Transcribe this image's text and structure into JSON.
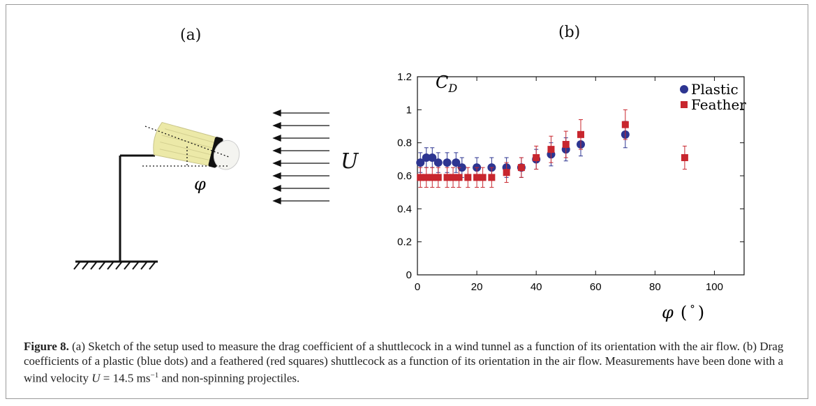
{
  "panels": {
    "a_label": "(a)",
    "b_label": "(b)"
  },
  "sketch": {
    "velocity_label": "U",
    "angle_label": "φ",
    "colors": {
      "feathers": "#ece9a8",
      "band": "#111111",
      "cork": "#f4f4f0"
    }
  },
  "chart_data": {
    "type": "scatter",
    "ylabel_main": "C",
    "ylabel_sub": "D",
    "xlabel_symbol": "φ",
    "xlabel_unit_open": "(",
    "xlabel_unit_deg": "°",
    "xlabel_unit_close": ")",
    "xlim": [
      0,
      110
    ],
    "ylim": [
      0,
      1.2
    ],
    "x_ticks": [
      "0",
      "20",
      "40",
      "60",
      "80",
      "100"
    ],
    "y_ticks": [
      "0",
      "0.2",
      "0.4",
      "0.6",
      "0.8",
      "1",
      "1.2"
    ],
    "legend_position": "top-right",
    "series": [
      {
        "name": "Plastic",
        "marker": "circle",
        "color": "#2d3591",
        "points": [
          {
            "x": 1,
            "y": 0.68,
            "err": 0.06
          },
          {
            "x": 3,
            "y": 0.71,
            "err": 0.06
          },
          {
            "x": 5,
            "y": 0.71,
            "err": 0.06
          },
          {
            "x": 7,
            "y": 0.68,
            "err": 0.06
          },
          {
            "x": 10,
            "y": 0.68,
            "err": 0.06
          },
          {
            "x": 13,
            "y": 0.68,
            "err": 0.06
          },
          {
            "x": 15,
            "y": 0.65,
            "err": 0.06
          },
          {
            "x": 20,
            "y": 0.65,
            "err": 0.06
          },
          {
            "x": 25,
            "y": 0.65,
            "err": 0.06
          },
          {
            "x": 30,
            "y": 0.65,
            "err": 0.06
          },
          {
            "x": 35,
            "y": 0.65,
            "err": 0.06
          },
          {
            "x": 40,
            "y": 0.7,
            "err": 0.06
          },
          {
            "x": 45,
            "y": 0.73,
            "err": 0.07
          },
          {
            "x": 50,
            "y": 0.76,
            "err": 0.07
          },
          {
            "x": 55,
            "y": 0.79,
            "err": 0.07
          },
          {
            "x": 70,
            "y": 0.85,
            "err": 0.08
          }
        ]
      },
      {
        "name": "Feather",
        "marker": "square",
        "color": "#c8262e",
        "points": [
          {
            "x": 1,
            "y": 0.59,
            "err": 0.06
          },
          {
            "x": 3,
            "y": 0.59,
            "err": 0.06
          },
          {
            "x": 5,
            "y": 0.59,
            "err": 0.06
          },
          {
            "x": 7,
            "y": 0.59,
            "err": 0.06
          },
          {
            "x": 10,
            "y": 0.59,
            "err": 0.06
          },
          {
            "x": 12,
            "y": 0.59,
            "err": 0.06
          },
          {
            "x": 14,
            "y": 0.59,
            "err": 0.06
          },
          {
            "x": 17,
            "y": 0.59,
            "err": 0.06
          },
          {
            "x": 20,
            "y": 0.59,
            "err": 0.06
          },
          {
            "x": 22,
            "y": 0.59,
            "err": 0.06
          },
          {
            "x": 25,
            "y": 0.59,
            "err": 0.06
          },
          {
            "x": 30,
            "y": 0.62,
            "err": 0.06
          },
          {
            "x": 35,
            "y": 0.65,
            "err": 0.06
          },
          {
            "x": 40,
            "y": 0.71,
            "err": 0.07
          },
          {
            "x": 45,
            "y": 0.76,
            "err": 0.08
          },
          {
            "x": 50,
            "y": 0.79,
            "err": 0.08
          },
          {
            "x": 55,
            "y": 0.85,
            "err": 0.09
          },
          {
            "x": 70,
            "y": 0.91,
            "err": 0.09
          },
          {
            "x": 90,
            "y": 0.71,
            "err": 0.07
          }
        ]
      }
    ]
  },
  "caption": {
    "label": "Figure 8.",
    "text_1": " (a) Sketch of the setup used to measure the drag coefficient of a shuttlecock in a wind tunnel as a function of its orientation with the air flow. (b) Drag coefficients of a plastic (blue dots) and a feathered (red squares) shuttlecock as a function of its orientation in the air flow. Measurements have been done with a wind velocity ",
    "velocity_symbol": "U",
    "equals": " = 14.5 ms",
    "exponent": "−1",
    "text_2": " and non-spinning projectiles."
  }
}
